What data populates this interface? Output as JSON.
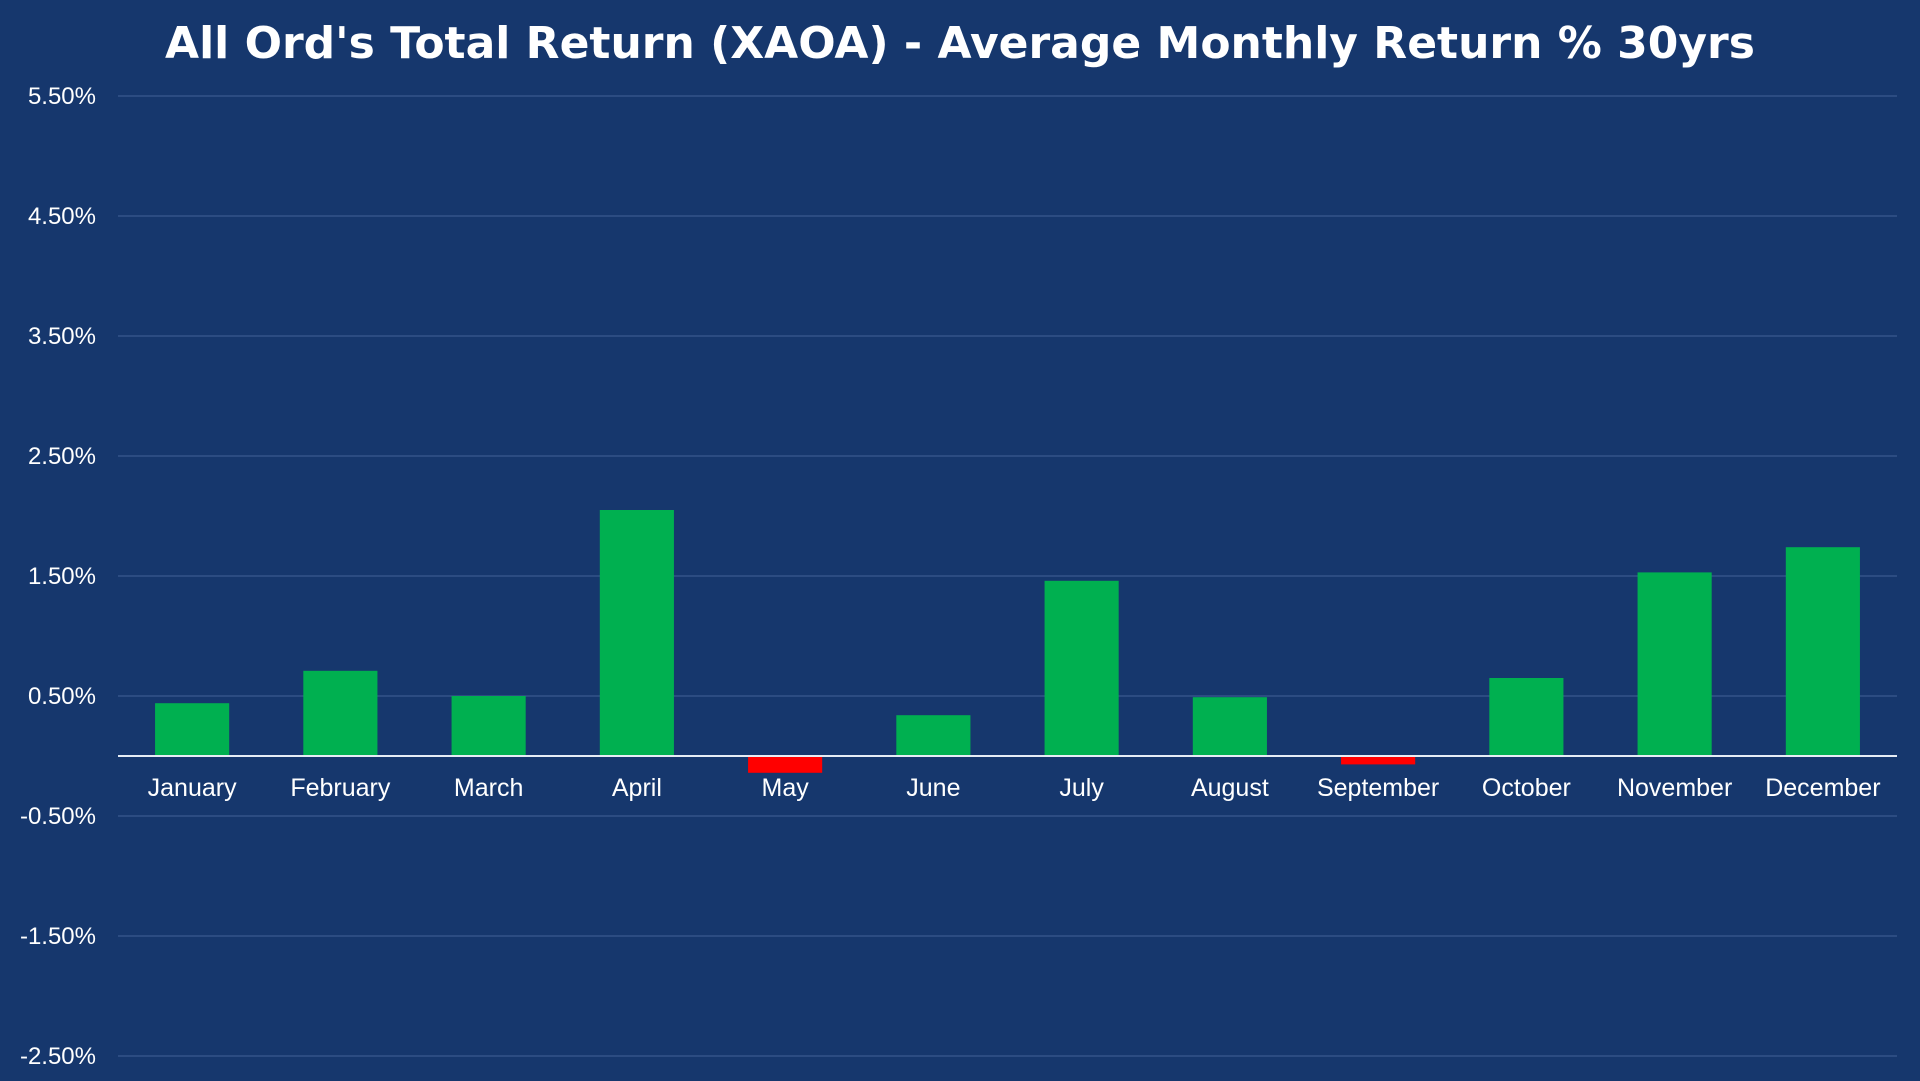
{
  "chart_data": {
    "type": "bar",
    "title": "All Ord's Total Return (XAOA) - Average Monthly Return % 30yrs",
    "xlabel": "",
    "ylabel": "",
    "ylim": [
      -2.5,
      5.5
    ],
    "y_ticks": [
      5.5,
      4.5,
      3.5,
      2.5,
      1.5,
      0.5,
      -0.5,
      -1.5,
      -2.5
    ],
    "y_tick_labels": [
      "5.50%",
      "4.50%",
      "3.50%",
      "2.50%",
      "1.50%",
      "0.50%",
      "-0.50%",
      "-1.50%",
      "-2.50%"
    ],
    "grid": true,
    "categories": [
      "January",
      "February",
      "March",
      "April",
      "May",
      "June",
      "July",
      "August",
      "September",
      "October",
      "November",
      "December"
    ],
    "values": [
      0.44,
      0.71,
      0.5,
      2.05,
      -0.14,
      0.34,
      1.46,
      0.49,
      -0.07,
      0.65,
      1.53,
      1.74
    ],
    "colors": {
      "background": "#16376d",
      "positive": "#00b050",
      "negative": "#ff0000",
      "grid": "#34548a",
      "axis": "#e6ecf5",
      "text": "#ffffff"
    }
  }
}
